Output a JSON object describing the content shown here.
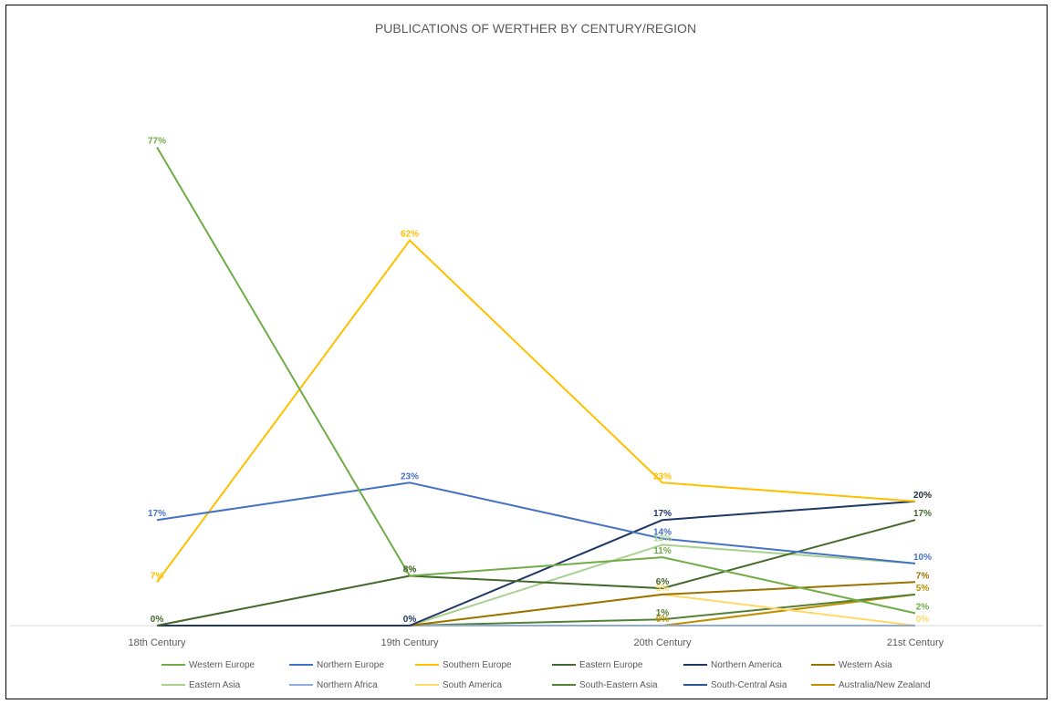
{
  "chart_data": {
    "type": "line",
    "title": "PUBLICATIONS OF WERTHER BY CENTURY/REGION",
    "xlabel": "",
    "ylabel": "",
    "categories": [
      "18th Century",
      "19th Century",
      "20th Century",
      "21st Century"
    ],
    "ylim": [
      0,
      0.8
    ],
    "grid": false,
    "legend_position": "bottom",
    "series": [
      {
        "name": "Western Europe",
        "color": "#70ad47",
        "values": [
          0.77,
          0.08,
          0.11,
          0.02
        ],
        "labels": [
          "77%",
          "8%",
          "11%",
          "2%"
        ]
      },
      {
        "name": "Northern Europe",
        "color": "#4472c4",
        "values": [
          0.17,
          0.23,
          0.14,
          0.1
        ],
        "labels": [
          "17%",
          "23%",
          "14%",
          "10%"
        ]
      },
      {
        "name": "Southern Europe",
        "color": "#ffc000",
        "values": [
          0.07,
          0.62,
          0.23,
          0.2
        ],
        "labels": [
          "7%",
          "62%",
          "23%",
          "20%"
        ]
      },
      {
        "name": "Eastern Europe",
        "color": "#43682b",
        "values": [
          0.0,
          0.08,
          0.06,
          0.17
        ],
        "labels": [
          "0%",
          "8%",
          "6%",
          "17%"
        ]
      },
      {
        "name": "Northern America",
        "color": "#203864",
        "values": [
          0.0,
          0.0,
          0.17,
          0.2
        ],
        "labels": [
          "",
          "0%",
          "17%",
          "20%"
        ]
      },
      {
        "name": "Western Asia",
        "color": "#997300",
        "values": [
          0.0,
          0.0,
          0.05,
          0.07
        ],
        "labels": [
          "",
          "",
          "",
          "7%"
        ]
      },
      {
        "name": "Eastern Asia",
        "color": "#a9d18e",
        "values": [
          0.0,
          0.0,
          0.13,
          0.1
        ],
        "labels": [
          "",
          "",
          "13%",
          ""
        ]
      },
      {
        "name": "Northern Africa",
        "color": "#8faadc",
        "values": [
          0.0,
          0.0,
          0.0,
          0.0
        ],
        "labels": [
          "",
          "",
          "",
          ""
        ]
      },
      {
        "name": "South America",
        "color": "#ffd966",
        "values": [
          0.0,
          0.0,
          0.05,
          0.0
        ],
        "labels": [
          "",
          "",
          "5%",
          "0%"
        ]
      },
      {
        "name": "South-Eastern Asia",
        "color": "#548235",
        "values": [
          0.0,
          0.0,
          0.01,
          0.05
        ],
        "labels": [
          "",
          "",
          "1%",
          ""
        ]
      },
      {
        "name": "South-Central Asia",
        "color": "#2f5597",
        "values": [
          0.0,
          0.0,
          0.0,
          0.0
        ],
        "labels": [
          "",
          "",
          "",
          ""
        ]
      },
      {
        "name": "Australia/New Zealand",
        "color": "#bf9000",
        "values": [
          0.0,
          0.0,
          0.0,
          0.05
        ],
        "labels": [
          "",
          "",
          "0%",
          "5%"
        ]
      }
    ]
  }
}
